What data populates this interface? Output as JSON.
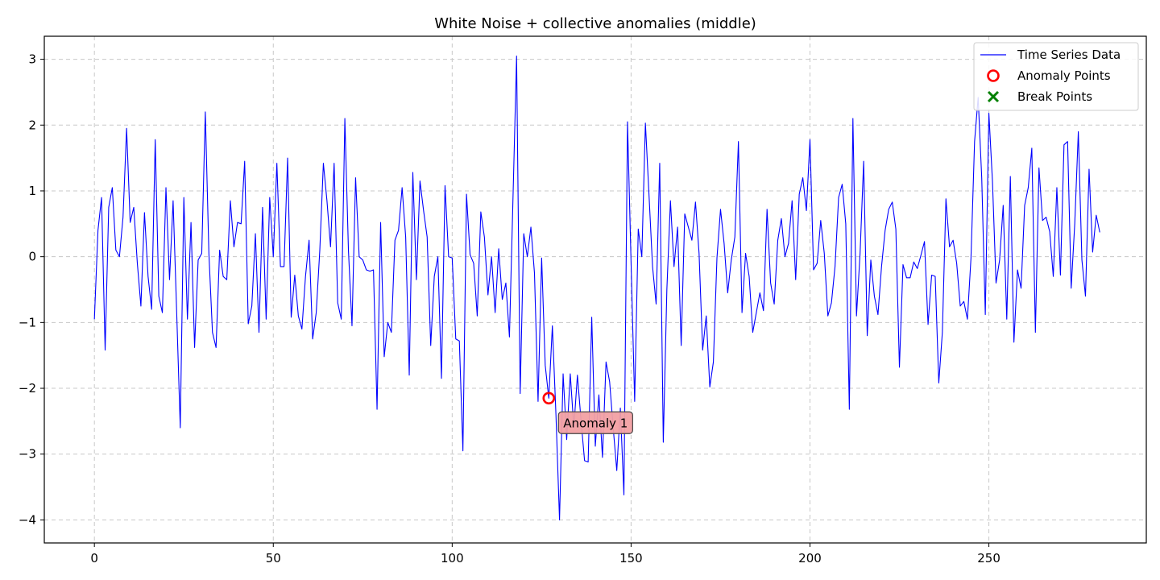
{
  "chart_data": {
    "type": "line",
    "title": "White Noise + collective anomalies (middle)",
    "xlabel": "",
    "ylabel": "",
    "xlim": [
      -14,
      294
    ],
    "ylim": [
      -4.35,
      3.35
    ],
    "grid": true,
    "x_ticks": [
      0,
      50,
      100,
      150,
      200,
      250
    ],
    "y_ticks": [
      3,
      2,
      1,
      0,
      -1,
      -2,
      -3,
      -4
    ],
    "x_tick_labels": [
      "0",
      "50",
      "100",
      "150",
      "200",
      "250"
    ],
    "y_tick_labels": [
      "3",
      "2",
      "1",
      "0",
      "−1",
      "−2",
      "−3",
      "−4"
    ],
    "series": [
      {
        "name": "Time Series Data",
        "color": "#0000ff",
        "x_start": 0,
        "x_step": 1,
        "values": [
          -0.95,
          0.4,
          0.9,
          -1.42,
          0.75,
          1.05,
          0.1,
          0.0,
          0.6,
          1.95,
          0.52,
          0.75,
          -0.1,
          -0.75,
          0.67,
          -0.3,
          -0.8,
          1.78,
          -0.6,
          -0.85,
          1.05,
          -0.35,
          0.85,
          -0.85,
          -2.6,
          0.9,
          -0.95,
          0.52,
          -1.38,
          -0.05,
          0.05,
          2.2,
          0.05,
          -1.15,
          -1.38,
          0.1,
          -0.3,
          -0.35,
          0.85,
          0.15,
          0.52,
          0.5,
          1.45,
          -1.02,
          -0.75,
          0.35,
          -1.15,
          0.75,
          -0.95,
          0.9,
          0.0,
          1.42,
          -0.15,
          -0.15,
          1.5,
          -0.92,
          -0.28,
          -0.9,
          -1.1,
          -0.3,
          0.25,
          -1.25,
          -0.85,
          0.1,
          1.42,
          0.85,
          0.15,
          1.42,
          -0.7,
          -0.95,
          2.1,
          0.1,
          -1.05,
          1.2,
          0.0,
          -0.05,
          -0.2,
          -0.22,
          -0.2,
          -2.32,
          0.52,
          -1.52,
          -1.0,
          -1.15,
          0.25,
          0.4,
          1.05,
          0.3,
          -1.8,
          1.28,
          -0.35,
          1.15,
          0.7,
          0.3,
          -1.35,
          -0.3,
          0.0,
          -1.85,
          1.08,
          0.0,
          -0.02,
          -1.25,
          -1.28,
          -2.95,
          0.95,
          0.03,
          -0.1,
          -0.9,
          0.68,
          0.3,
          -0.58,
          0.0,
          -0.85,
          0.12,
          -0.65,
          -0.4,
          -1.22,
          0.9,
          3.05,
          -2.08,
          0.35,
          0.0,
          0.45,
          -0.25,
          -2.2,
          -0.02,
          -1.65,
          -2.15,
          -1.05,
          -2.4,
          -4.0,
          -1.78,
          -2.78,
          -1.78,
          -2.6,
          -1.8,
          -2.48,
          -3.1,
          -3.12,
          -0.92,
          -2.88,
          -2.1,
          -3.05,
          -1.6,
          -1.9,
          -2.6,
          -3.25,
          -2.3,
          -3.62,
          2.05,
          -0.1,
          -2.2,
          0.42,
          0.0,
          2.03,
          0.95,
          -0.15,
          -0.72,
          1.42,
          -2.82,
          -0.5,
          0.85,
          -0.15,
          0.45,
          -1.35,
          0.65,
          0.45,
          0.25,
          0.83,
          0.05,
          -1.42,
          -0.9,
          -1.98,
          -1.6,
          -0.02,
          0.72,
          0.2,
          -0.55,
          -0.05,
          0.3,
          1.75,
          -0.85,
          0.05,
          -0.3,
          -1.15,
          -0.85,
          -0.55,
          -0.82,
          0.72,
          -0.4,
          -0.72,
          0.25,
          0.58,
          0.0,
          0.2,
          0.85,
          -0.35,
          0.95,
          1.2,
          0.7,
          1.78,
          -0.2,
          -0.1,
          0.55,
          0.05,
          -0.9,
          -0.7,
          -0.15,
          0.9,
          1.1,
          0.5,
          -2.32,
          2.1,
          -0.9,
          0.05,
          1.45,
          -1.2,
          -0.05,
          -0.6,
          -0.88,
          -0.15,
          0.4,
          0.72,
          0.83,
          0.42,
          -1.68,
          -0.12,
          -0.32,
          -0.32,
          -0.08,
          -0.18,
          0.02,
          0.23,
          -1.03,
          -0.28,
          -0.3,
          -1.92,
          -1.15,
          0.88,
          0.15,
          0.25,
          -0.1,
          -0.75,
          -0.68,
          -0.95,
          -0.02,
          1.75,
          2.42,
          1.2,
          -0.88,
          2.18,
          1.15,
          -0.4,
          -0.05,
          0.78,
          -0.95,
          1.22,
          -1.3,
          -0.2,
          -0.48,
          0.78,
          1.05,
          1.65,
          -1.15,
          1.35,
          0.55,
          0.6,
          0.38,
          -0.3,
          1.05,
          -0.28,
          1.7,
          1.75,
          -0.48,
          0.5,
          1.9,
          -0.05,
          -0.6,
          1.33,
          0.07,
          0.63,
          0.37
        ]
      }
    ],
    "anomaly_points": [
      {
        "x": 127,
        "y": -2.15
      }
    ],
    "break_points": [],
    "annotations": [
      {
        "text": "Anomaly 1",
        "x": 127,
        "y": -2.15
      }
    ],
    "legend": {
      "placement": "top-right",
      "entries": [
        {
          "label": "Time Series Data",
          "marker": "line",
          "color": "#0000ff"
        },
        {
          "label": "Anomaly Points",
          "marker": "hollow-circle",
          "color": "#ff0000"
        },
        {
          "label": "Break Points",
          "marker": "x",
          "color": "#008000"
        }
      ]
    }
  }
}
